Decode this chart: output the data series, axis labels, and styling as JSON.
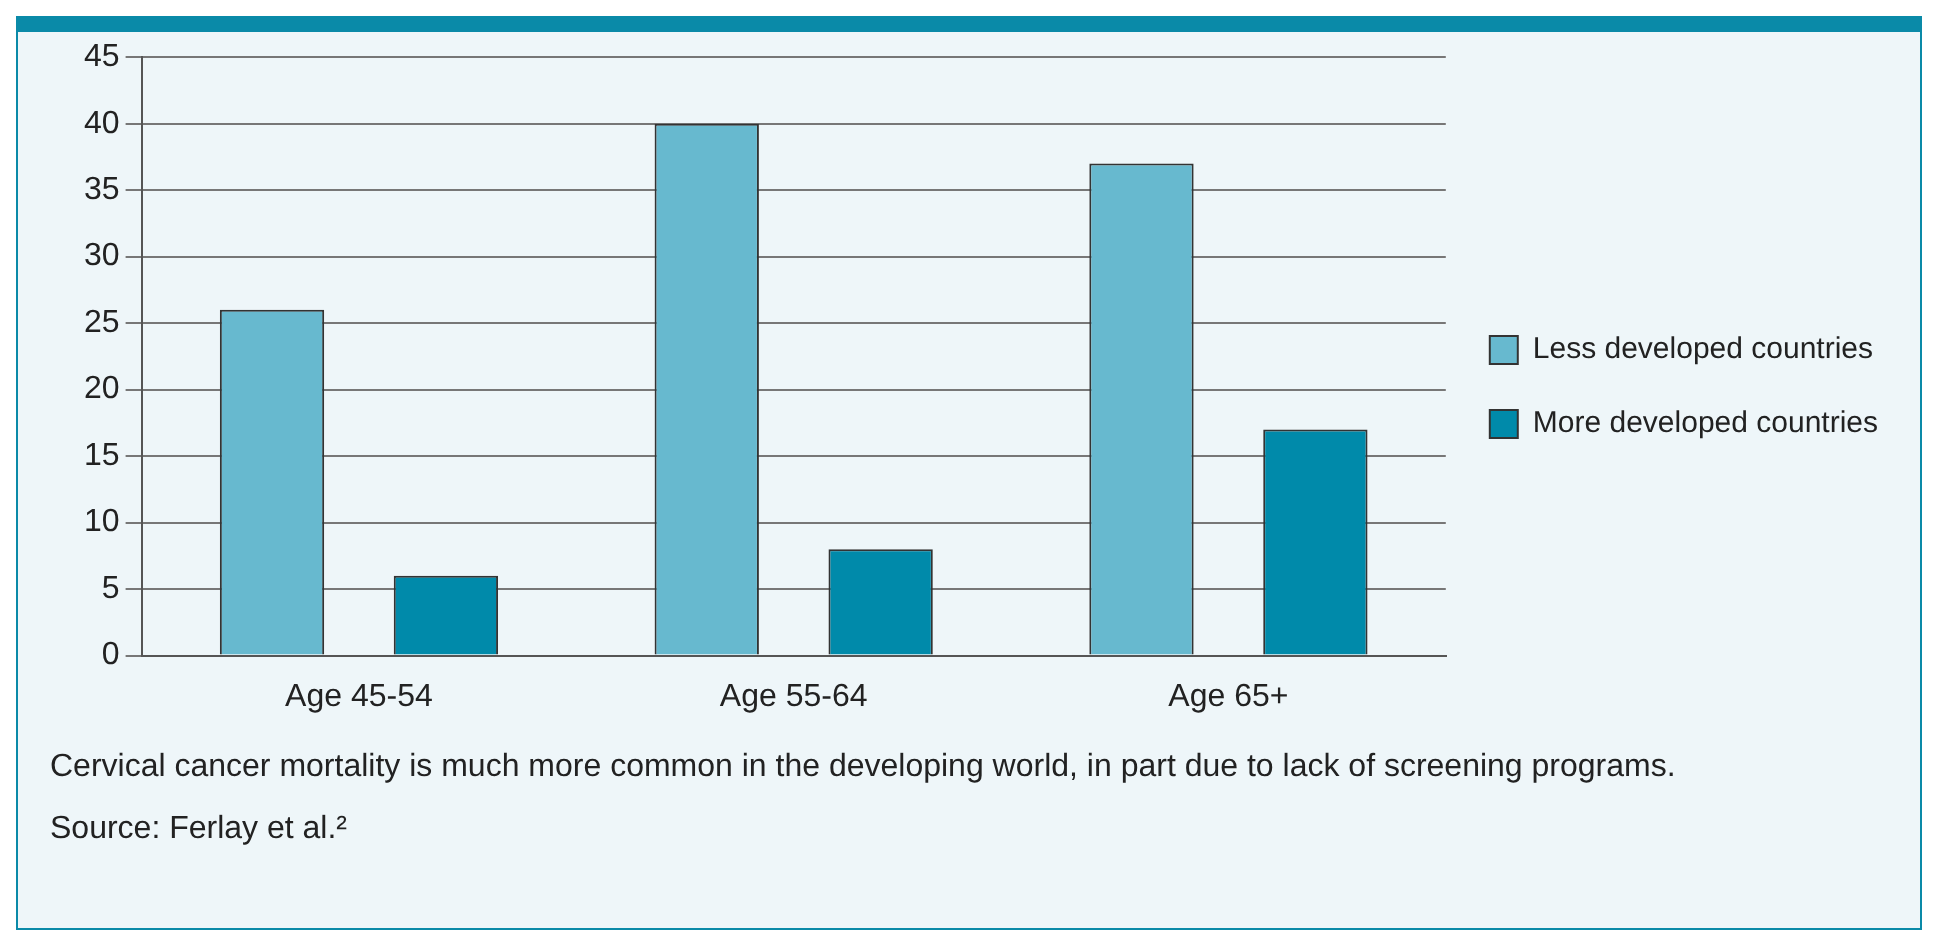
{
  "chart_data": {
    "type": "bar",
    "categories": [
      "Age 45-54",
      "Age 55-64",
      "Age 65+"
    ],
    "series": [
      {
        "name": "Less developed countries",
        "color": "#67b9cf",
        "values": [
          26,
          40,
          37
        ]
      },
      {
        "name": "More developed countries",
        "color": "#008aaa",
        "values": [
          6,
          8,
          17
        ]
      }
    ],
    "ylim": [
      0,
      45
    ],
    "yticks": [
      0,
      5,
      10,
      15,
      20,
      25,
      30,
      35,
      40,
      45
    ],
    "grid": "y",
    "legend": "right",
    "annotations": [
      "Cervical cancer mortality is much more common in the developing world, in part due to lack of screening programs.",
      "Source: Ferlay et al.²"
    ]
  }
}
